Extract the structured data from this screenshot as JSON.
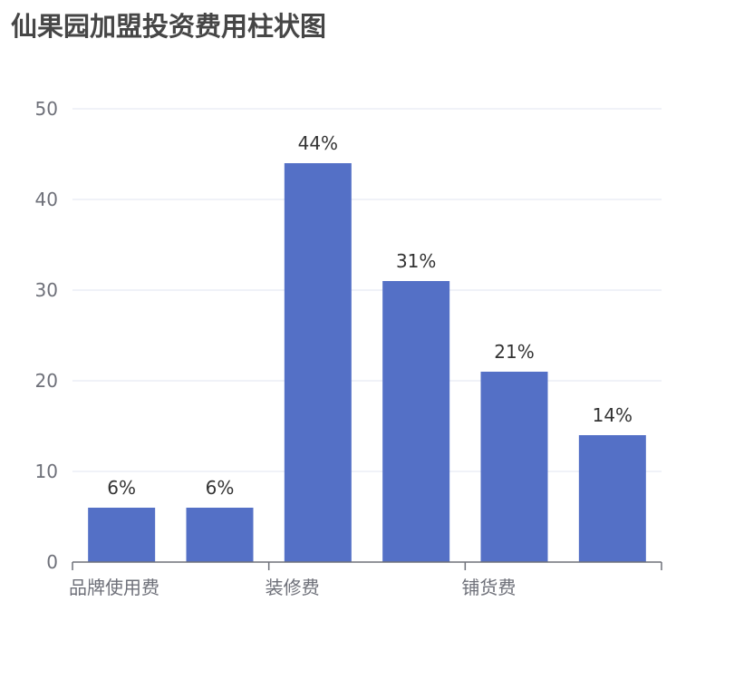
{
  "chart_data": {
    "type": "bar",
    "title": "仙果园加盟投资费用柱状图",
    "categories": [
      "品牌使用费",
      "装修费",
      "铺货费"
    ],
    "series": [
      {
        "values": [
          6,
          44,
          21
        ],
        "labels": [
          "6%",
          "44%",
          "21%"
        ]
      },
      {
        "values": [
          6,
          31,
          14
        ],
        "labels": [
          "6%",
          "31%",
          "14%"
        ]
      }
    ],
    "ylim": [
      0,
      50
    ],
    "yticks": [
      0,
      10,
      20,
      30,
      40,
      50
    ],
    "grid": true,
    "xlabel": "",
    "ylabel": "",
    "colors": {
      "bar": "#5470c6",
      "grid": "#e0e6f1",
      "axis": "#6e7079",
      "label": "#333333"
    }
  }
}
